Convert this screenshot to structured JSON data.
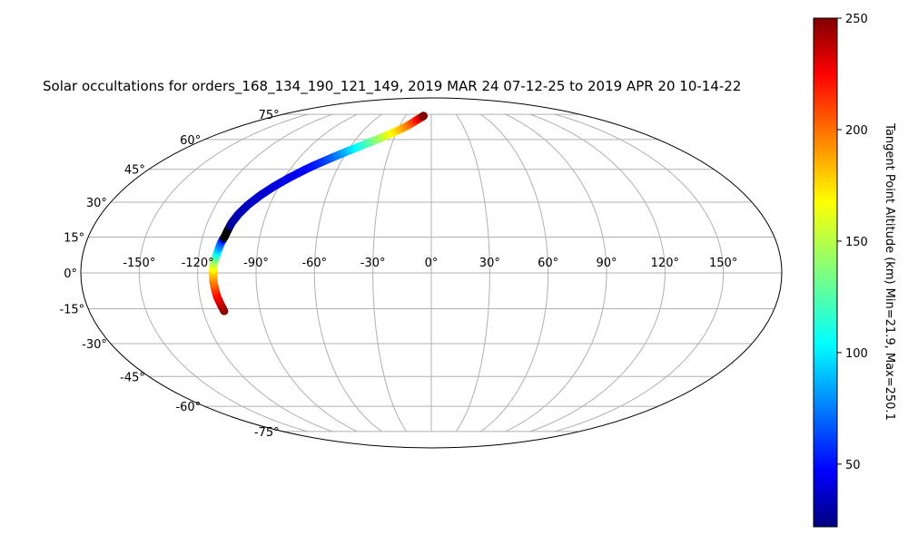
{
  "chart_data": {
    "type": "scatter",
    "projection": "mollweide",
    "title": "Solar occultations for orders_168_134_190_121_149, 2019 MAR 24 07-12-25 to 2019 APR 20 10-14-22",
    "lon_ticks": [
      -150,
      -120,
      -90,
      -60,
      -30,
      0,
      30,
      60,
      90,
      120,
      150
    ],
    "lat_ticks": [
      75,
      60,
      45,
      30,
      15,
      0,
      -15,
      -30,
      -45,
      -60,
      -75
    ],
    "lon_tick_labels": [
      "-150°",
      "-120°",
      "-90°",
      "-60°",
      "-30°",
      "0°",
      "30°",
      "60°",
      "90°",
      "120°",
      "150°"
    ],
    "lat_tick_labels": [
      "75°",
      "60°",
      "45°",
      "30°",
      "15°",
      "0°",
      "-15°",
      "-30°",
      "-45°",
      "-60°",
      "-75°"
    ],
    "grid": true,
    "colorbar": {
      "label": "Tangent Point Altitude (km) Min=21.9, Max=250.1",
      "colormap": "jet",
      "range": [
        21.9,
        250
      ],
      "ticks": [
        50,
        100,
        150,
        200,
        250
      ],
      "tick_labels": [
        "50",
        "100",
        "150",
        "200",
        "250"
      ],
      "placement": "right"
    },
    "series": [
      {
        "values_note_keys": [
          "lon",
          "lat",
          "alt"
        ],
        "points": [
          [
            -109,
            -16,
            250
          ],
          [
            -110,
            -13,
            238
          ],
          [
            -111,
            -10,
            225
          ],
          [
            -111.5,
            -7,
            212
          ],
          [
            -112,
            -4,
            198
          ],
          [
            -112,
            -1,
            184
          ],
          [
            -112,
            1,
            172
          ],
          [
            -112,
            3,
            160
          ],
          [
            -111.5,
            5,
            145
          ],
          [
            -111,
            7,
            125
          ],
          [
            -110.5,
            9,
            105
          ],
          [
            -110,
            11,
            85
          ],
          [
            -109.5,
            13,
            70
          ],
          [
            -108.5,
            15,
            40
          ],
          [
            -108,
            17,
            25
          ],
          [
            -107.5,
            19,
            22
          ],
          [
            -107,
            21,
            28
          ],
          [
            -106,
            23,
            31
          ],
          [
            -105,
            25,
            33
          ],
          [
            -103.5,
            27,
            35
          ],
          [
            -102,
            29,
            36
          ],
          [
            -100,
            31,
            38
          ],
          [
            -98,
            33,
            39
          ],
          [
            -95.5,
            35,
            40
          ],
          [
            -93,
            37,
            42
          ],
          [
            -90,
            39,
            44
          ],
          [
            -87,
            41,
            46
          ],
          [
            -83.5,
            43,
            48
          ],
          [
            -80,
            45,
            50
          ],
          [
            -76,
            47,
            55
          ],
          [
            -71.5,
            49,
            62
          ],
          [
            -67,
            51,
            72
          ],
          [
            -62,
            53,
            85
          ],
          [
            -57,
            55,
            100
          ],
          [
            -51.5,
            57,
            115
          ],
          [
            -46,
            59,
            130
          ],
          [
            -40.5,
            61,
            145
          ],
          [
            -35,
            63,
            160
          ],
          [
            -29.5,
            65,
            172
          ],
          [
            -24.5,
            67,
            185
          ],
          [
            -20,
            69,
            198
          ],
          [
            -16,
            71,
            212
          ],
          [
            -12.5,
            72.5,
            225
          ],
          [
            -10,
            73.5,
            238
          ],
          [
            -9,
            74,
            250
          ]
        ]
      }
    ]
  }
}
